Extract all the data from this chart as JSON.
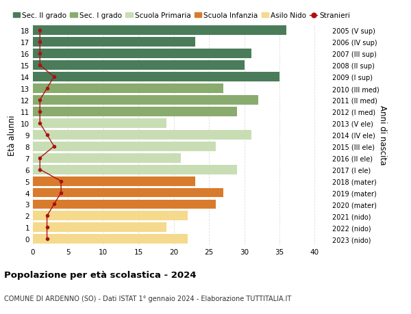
{
  "ages": [
    18,
    17,
    16,
    15,
    14,
    13,
    12,
    11,
    10,
    9,
    8,
    7,
    6,
    5,
    4,
    3,
    2,
    1,
    0
  ],
  "bar_values": [
    36,
    23,
    31,
    30,
    35,
    27,
    32,
    29,
    19,
    31,
    26,
    21,
    29,
    23,
    27,
    26,
    22,
    19,
    22
  ],
  "bar_colors": [
    "#4a7c59",
    "#4a7c59",
    "#4a7c59",
    "#4a7c59",
    "#4a7c59",
    "#8aab6e",
    "#8aab6e",
    "#8aab6e",
    "#c8ddb4",
    "#c8ddb4",
    "#c8ddb4",
    "#c8ddb4",
    "#c8ddb4",
    "#d97b2c",
    "#d97b2c",
    "#d97b2c",
    "#f5d98c",
    "#f5d98c",
    "#f5d98c"
  ],
  "right_labels": [
    "2005 (V sup)",
    "2006 (IV sup)",
    "2007 (III sup)",
    "2008 (II sup)",
    "2009 (I sup)",
    "2010 (III med)",
    "2011 (II med)",
    "2012 (I med)",
    "2013 (V ele)",
    "2014 (IV ele)",
    "2015 (III ele)",
    "2016 (II ele)",
    "2017 (I ele)",
    "2018 (mater)",
    "2019 (mater)",
    "2020 (mater)",
    "2021 (nido)",
    "2022 (nido)",
    "2023 (nido)"
  ],
  "stranieri": [
    1,
    1,
    1,
    1,
    3,
    2,
    1,
    1,
    1,
    2,
    3,
    1,
    1,
    4,
    4,
    3,
    2,
    2,
    2
  ],
  "legend_labels": [
    "Sec. II grado",
    "Sec. I grado",
    "Scuola Primaria",
    "Scuola Infanzia",
    "Asilo Nido",
    "Stranieri"
  ],
  "legend_colors": [
    "#4a7c59",
    "#8aab6e",
    "#c8ddb4",
    "#d97b2c",
    "#f5d98c",
    "#cc1111"
  ],
  "title": "Popolazione per età scolastica - 2024",
  "subtitle": "COMUNE DI ARDENNO (SO) - Dati ISTAT 1° gennaio 2024 - Elaborazione TUTTITALIA.IT",
  "ylabel": "Età alunni",
  "right_ylabel": "Anni di nascita",
  "xlim": [
    0,
    42
  ],
  "xticks": [
    0,
    5,
    10,
    15,
    20,
    25,
    30,
    35,
    40
  ],
  "bg_color": "#ffffff",
  "bar_height": 0.82,
  "grid_color": "#dddddd",
  "stranieri_color": "#aa1111"
}
